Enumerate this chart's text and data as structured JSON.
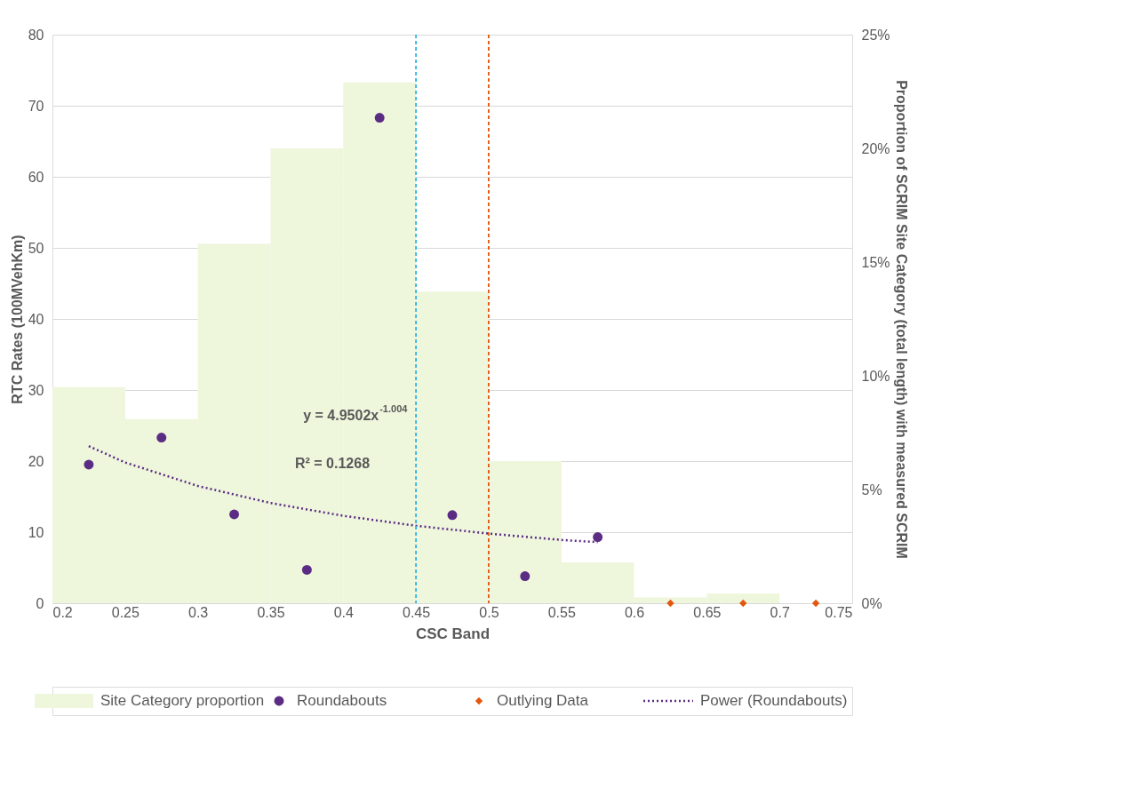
{
  "chart_data": {
    "type": "scatter",
    "xlabel": "CSC Band",
    "ylabel": "RTC Rates (100MVehKm)",
    "y2label": "Proportion of SCRIM Site Category (total length) with measured SCRIM",
    "xlim": [
      0.2,
      0.75
    ],
    "xticks": [
      0.2,
      0.25,
      0.3,
      0.35,
      0.4,
      0.45,
      0.5,
      0.55,
      0.6,
      0.65,
      0.7,
      0.75
    ],
    "ylim": [
      0,
      80
    ],
    "yticks": [
      0,
      10,
      20,
      30,
      40,
      50,
      60,
      70,
      80
    ],
    "y2lim": [
      0,
      25
    ],
    "y2ticks": [
      {
        "value": 0,
        "label": "0%"
      },
      {
        "value": 5,
        "label": "5%"
      },
      {
        "value": 10,
        "label": "10%"
      },
      {
        "value": 15,
        "label": "15%"
      },
      {
        "value": 20,
        "label": "20%"
      },
      {
        "value": 25,
        "label": "25%"
      }
    ],
    "grid": "y",
    "legend": "bottom",
    "series": [
      {
        "name": "Site Category proportion",
        "type": "bar",
        "axis": "y2",
        "color": "#eef6dc",
        "x": [
          0.225,
          0.275,
          0.325,
          0.375,
          0.425,
          0.475,
          0.525,
          0.575,
          0.625,
          0.675
        ],
        "values": [
          9.5,
          8.1,
          15.8,
          20.0,
          22.9,
          13.7,
          6.25,
          1.8,
          0.25,
          0.43
        ]
      },
      {
        "name": "Roundabouts",
        "marker": "circle",
        "color": "#5b2c83",
        "x": [
          0.225,
          0.275,
          0.325,
          0.375,
          0.425,
          0.475,
          0.525,
          0.575
        ],
        "values": [
          19.5,
          23.3,
          12.5,
          4.7,
          68.3,
          12.4,
          3.8,
          9.3
        ]
      },
      {
        "name": "Outlying Data",
        "marker": "diamond",
        "color": "#e4570f",
        "x": [
          0.625,
          0.675,
          0.725
        ],
        "values": [
          0,
          0,
          0
        ]
      },
      {
        "name": "Power (Roundabouts)",
        "type": "line",
        "line_style": "dotted",
        "color": "#5b2c83",
        "x": [
          0.225,
          0.25,
          0.3,
          0.35,
          0.4,
          0.45,
          0.5,
          0.55,
          0.575
        ],
        "values": [
          22.1,
          19.8,
          16.5,
          14.1,
          12.3,
          10.9,
          9.8,
          8.9,
          8.6
        ]
      }
    ],
    "ref_lines": [
      {
        "axis": "x",
        "value": 0.45,
        "color": "#33b5e5",
        "line_style": "dashed"
      },
      {
        "axis": "x",
        "value": 0.5,
        "color": "#e4570f",
        "line_style": "dashed"
      }
    ],
    "annotations": [
      "y = 4.9502x$^{-1.004}$",
      "R² = 0.1268"
    ]
  }
}
